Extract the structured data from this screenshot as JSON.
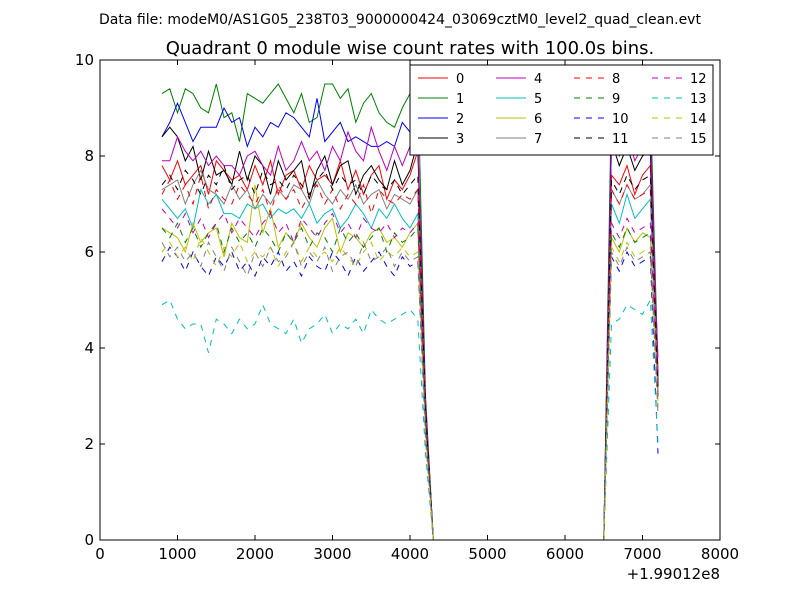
{
  "suptitle": "Data file: modeM0/AS1G05_238T03_9000000424_03069cztM0_level2_quad_clean.evt",
  "chart_data": {
    "type": "line",
    "title": "Quadrant 0 module wise count rates with 100.0s bins.",
    "xlabel": "",
    "ylabel": "",
    "xlim": [
      0,
      8000
    ],
    "ylim": [
      0,
      10
    ],
    "x_offset_label": "+1.99012e8",
    "x_ticks": [
      0,
      1000,
      2000,
      3000,
      4000,
      5000,
      6000,
      7000,
      8000
    ],
    "x_tick_labels": [
      "0",
      "1000",
      "2000",
      "3000",
      "4000",
      "5000",
      "6000",
      "7000",
      "8000"
    ],
    "y_ticks": [
      0,
      2,
      4,
      6,
      8,
      10
    ],
    "y_tick_labels": [
      "0",
      "2",
      "4",
      "6",
      "8",
      "10"
    ],
    "grid": false,
    "legend_position": "top-right",
    "legend_columns": 4,
    "x_segments": [
      [
        800,
        900,
        1000,
        1100,
        1200,
        1300,
        1400,
        1500,
        1600,
        1700,
        1800,
        1900,
        2000,
        2100,
        2200,
        2300,
        2400,
        2500,
        2600,
        2700,
        2800,
        2900,
        3000,
        3100,
        3200,
        3300,
        3400,
        3500,
        3600,
        3700,
        3800,
        3900,
        4000,
        4100,
        4200,
        4300,
        4400,
        4500,
        4600,
        4700,
        4800,
        4900,
        5000,
        5100,
        5200,
        5300,
        5400,
        5500,
        5600,
        5700,
        5800,
        5900,
        6000,
        6100,
        6200,
        6300,
        6400,
        6500,
        6600,
        6700,
        6800,
        6900,
        7000,
        7100,
        7200
      ]
    ],
    "series": [
      {
        "name": "0",
        "color": "#ff0000",
        "dash": "solid",
        "values": [
          7.8,
          7.5,
          7.9,
          7.4,
          7.6,
          7.8,
          7.2,
          7.9,
          7.7,
          7.5,
          7.6,
          7.3,
          7.8,
          7.4,
          7.9,
          7.2,
          7.6,
          7.7,
          7.3,
          7.8,
          7.5,
          7.6,
          7.4,
          7.9,
          7.3,
          7.7,
          7.2,
          7.6,
          7.8,
          7.1,
          7.5,
          7.3,
          7.6,
          8.1,
          2.8,
          0,
          0,
          0,
          0,
          0,
          0,
          0,
          0,
          0,
          0,
          0,
          0,
          0,
          0,
          0,
          0,
          0,
          0,
          0,
          0,
          0,
          0,
          0,
          7.6,
          7.4,
          7.8,
          7.2,
          7.6,
          7.8,
          3.8
        ]
      },
      {
        "name": "1",
        "color": "#008000",
        "dash": "solid",
        "values": [
          9.3,
          9.4,
          8.9,
          9.4,
          9.3,
          9.0,
          8.9,
          9.5,
          8.8,
          8.9,
          8.3,
          9.3,
          9.2,
          9.1,
          9.3,
          9.5,
          9.2,
          8.9,
          9.3,
          8.7,
          8.8,
          9.5,
          9.5,
          9.2,
          9.4,
          8.7,
          9.1,
          9.3,
          8.9,
          8.7,
          8.6,
          9.0,
          9.3,
          9.6,
          3.0,
          0,
          0,
          0,
          0,
          0,
          0,
          0,
          0,
          0,
          0,
          0,
          0,
          0,
          0,
          0,
          0,
          0,
          0,
          0,
          0,
          0,
          0,
          0,
          9.3,
          8.6,
          9.5,
          9.0,
          9.3,
          9.2,
          3.5
        ]
      },
      {
        "name": "2",
        "color": "#0000ff",
        "dash": "solid",
        "values": [
          8.4,
          8.7,
          9.1,
          8.7,
          8.3,
          8.6,
          8.6,
          8.6,
          9.0,
          8.7,
          8.8,
          8.2,
          8.6,
          8.4,
          8.7,
          8.6,
          8.9,
          8.8,
          8.6,
          8.4,
          9.2,
          8.3,
          8.5,
          8.7,
          8.3,
          8.4,
          8.3,
          8.2,
          8.2,
          8.3,
          8.2,
          8.7,
          8.5,
          8.3,
          2.9,
          0,
          0,
          0,
          0,
          0,
          0,
          0,
          0,
          0,
          0,
          0,
          0,
          0,
          0,
          0,
          0,
          0,
          0,
          0,
          0,
          0,
          0,
          0,
          8.6,
          8.4,
          8.6,
          8.3,
          8.4,
          8.6,
          3.3
        ]
      },
      {
        "name": "3",
        "color": "#000000",
        "dash": "solid",
        "values": [
          8.4,
          8.6,
          8.4,
          7.9,
          8.2,
          7.5,
          8.1,
          7.6,
          7.7,
          7.4,
          8.1,
          7.5,
          8.0,
          7.8,
          7.2,
          7.9,
          7.5,
          7.7,
          7.9,
          7.1,
          7.7,
          8.0,
          7.4,
          7.8,
          7.9,
          7.2,
          7.6,
          7.8,
          7.5,
          7.3,
          7.9,
          7.4,
          7.7,
          8.3,
          2.7,
          0,
          0,
          0,
          0,
          0,
          0,
          0,
          0,
          0,
          0,
          0,
          0,
          0,
          0,
          0,
          0,
          0,
          0,
          0,
          0,
          0,
          0,
          0,
          8.3,
          7.8,
          8.2,
          7.7,
          8.0,
          8.1,
          3.2
        ]
      },
      {
        "name": "4",
        "color": "#bf00bf",
        "dash": "solid",
        "values": [
          7.9,
          7.9,
          8.4,
          8.1,
          7.9,
          8.1,
          7.8,
          8.0,
          7.8,
          7.8,
          7.6,
          8.0,
          8.1,
          7.8,
          7.6,
          8.2,
          7.7,
          7.9,
          8.3,
          7.9,
          8.1,
          7.7,
          8.2,
          7.9,
          8.5,
          8.1,
          7.9,
          8.6,
          8.1,
          7.7,
          8.2,
          7.8,
          8.2,
          8.4,
          2.8,
          0,
          0,
          0,
          0,
          0,
          0,
          0,
          0,
          0,
          0,
          0,
          0,
          0,
          0,
          0,
          0,
          0,
          0,
          0,
          0,
          0,
          0,
          0,
          8.3,
          8.0,
          8.5,
          7.9,
          8.2,
          8.5,
          3.4
        ]
      },
      {
        "name": "5",
        "color": "#00bfbf",
        "dash": "solid",
        "values": [
          7.1,
          6.9,
          6.7,
          6.9,
          6.5,
          7.3,
          7.0,
          7.2,
          6.8,
          6.8,
          6.7,
          7.0,
          6.9,
          7.0,
          6.7,
          6.9,
          6.8,
          6.9,
          6.7,
          7.0,
          6.6,
          6.8,
          6.9,
          6.5,
          6.7,
          7.0,
          6.8,
          6.5,
          6.9,
          6.7,
          7.0,
          6.7,
          6.5,
          6.8,
          2.5,
          0,
          0,
          0,
          0,
          0,
          0,
          0,
          0,
          0,
          0,
          0,
          0,
          0,
          0,
          0,
          0,
          0,
          0,
          0,
          0,
          0,
          0,
          0,
          7.0,
          6.6,
          7.2,
          6.7,
          6.9,
          7.1,
          3.0
        ]
      },
      {
        "name": "6",
        "color": "#bfbf00",
        "dash": "solid",
        "values": [
          6.5,
          6.4,
          6.3,
          6.0,
          6.6,
          6.2,
          6.4,
          6.5,
          5.9,
          6.6,
          6.3,
          6.2,
          7.4,
          6.4,
          6.9,
          6.1,
          6.4,
          6.2,
          6.6,
          6.3,
          6.1,
          6.5,
          6.7,
          6.0,
          6.4,
          6.3,
          6.1,
          6.4,
          6.5,
          6.2,
          6.3,
          6.1,
          6.4,
          6.6,
          2.4,
          0,
          0,
          0,
          0,
          0,
          0,
          0,
          0,
          0,
          0,
          0,
          0,
          0,
          0,
          0,
          0,
          0,
          0,
          0,
          0,
          0,
          0,
          0,
          6.3,
          6.0,
          6.5,
          6.2,
          6.4,
          6.3,
          2.9
        ]
      },
      {
        "name": "7",
        "color": "#808080",
        "dash": "solid",
        "values": [
          7.3,
          7.4,
          7.5,
          7.0,
          7.4,
          7.7,
          7.3,
          7.2,
          7.0,
          7.4,
          7.1,
          7.3,
          6.9,
          7.2,
          7.0,
          7.3,
          7.1,
          7.4,
          7.3,
          7.0,
          7.5,
          7.2,
          7.0,
          7.3,
          7.1,
          7.4,
          7.0,
          7.2,
          7.3,
          6.9,
          7.2,
          7.1,
          7.0,
          7.3,
          2.6,
          0,
          0,
          0,
          0,
          0,
          0,
          0,
          0,
          0,
          0,
          0,
          0,
          0,
          0,
          0,
          0,
          0,
          0,
          0,
          0,
          0,
          0,
          0,
          7.3,
          7.0,
          7.4,
          7.1,
          7.2,
          7.4,
          3.1
        ]
      },
      {
        "name": "8",
        "color": "#ff0000",
        "dash": "dashed",
        "values": [
          7.2,
          7.5,
          7.1,
          7.4,
          7.0,
          7.6,
          6.9,
          7.3,
          7.1,
          7.0,
          7.4,
          7.2,
          7.0,
          7.3,
          6.8,
          7.4,
          7.1,
          7.3,
          6.9,
          7.2,
          7.4,
          7.0,
          7.3,
          6.9,
          7.2,
          7.0,
          7.4,
          6.8,
          7.3,
          7.1,
          7.0,
          7.2,
          7.1,
          7.3,
          2.6,
          0,
          0,
          0,
          0,
          0,
          0,
          0,
          0,
          0,
          0,
          0,
          0,
          0,
          0,
          0,
          0,
          0,
          0,
          0,
          0,
          0,
          0,
          0,
          7.3,
          7.0,
          7.4,
          7.1,
          7.2,
          7.3,
          3.1
        ]
      },
      {
        "name": "9",
        "color": "#008000",
        "dash": "dashed",
        "values": [
          6.5,
          6.3,
          6.6,
          6.2,
          6.5,
          6.1,
          6.4,
          6.6,
          6.0,
          6.5,
          6.2,
          6.4,
          6.1,
          6.5,
          6.3,
          6.0,
          6.4,
          6.2,
          6.5,
          6.1,
          6.4,
          6.3,
          6.0,
          6.5,
          6.2,
          6.4,
          6.1,
          6.3,
          6.5,
          6.0,
          6.4,
          6.2,
          6.3,
          6.5,
          2.4,
          0,
          0,
          0,
          0,
          0,
          0,
          0,
          0,
          0,
          0,
          0,
          0,
          0,
          0,
          0,
          0,
          0,
          0,
          0,
          0,
          0,
          0,
          0,
          6.4,
          6.1,
          6.5,
          6.2,
          6.3,
          6.4,
          2.8
        ]
      },
      {
        "name": "10",
        "color": "#0000ff",
        "dash": "dashed",
        "values": [
          5.8,
          6.1,
          5.9,
          5.6,
          6.0,
          5.7,
          5.5,
          5.9,
          5.7,
          6.0,
          5.6,
          5.8,
          5.5,
          5.9,
          5.7,
          6.0,
          5.6,
          5.8,
          5.5,
          5.9,
          5.7,
          5.6,
          6.0,
          5.8,
          5.5,
          5.9,
          5.6,
          5.8,
          6.0,
          5.7,
          5.5,
          5.9,
          5.7,
          5.8,
          2.2,
          0,
          0,
          0,
          0,
          0,
          0,
          0,
          0,
          0,
          0,
          0,
          0,
          0,
          0,
          0,
          0,
          0,
          0,
          0,
          0,
          0,
          0,
          0,
          5.9,
          5.6,
          6.0,
          5.7,
          5.8,
          5.9,
          1.8
        ]
      },
      {
        "name": "11",
        "color": "#000000",
        "dash": "dashed",
        "values": [
          7.4,
          7.6,
          7.3,
          7.7,
          7.5,
          7.2,
          7.6,
          7.4,
          7.8,
          7.3,
          7.5,
          7.6,
          7.2,
          7.7,
          7.4,
          7.5,
          7.3,
          7.6,
          7.4,
          7.2,
          7.5,
          7.7,
          7.3,
          7.6,
          7.4,
          7.5,
          7.2,
          7.6,
          7.4,
          7.3,
          7.5,
          7.2,
          7.4,
          7.6,
          2.7,
          0,
          0,
          0,
          0,
          0,
          0,
          0,
          0,
          0,
          0,
          0,
          0,
          0,
          0,
          0,
          0,
          0,
          0,
          0,
          0,
          0,
          0,
          0,
          7.5,
          7.2,
          7.6,
          7.3,
          7.5,
          7.6,
          3.2
        ]
      },
      {
        "name": "12",
        "color": "#bf00bf",
        "dash": "dashed",
        "values": [
          6.9,
          6.7,
          6.5,
          6.8,
          6.4,
          6.7,
          6.3,
          6.6,
          6.8,
          6.4,
          6.7,
          6.5,
          6.3,
          6.6,
          6.8,
          6.4,
          6.6,
          6.2,
          6.7,
          6.5,
          6.3,
          6.6,
          6.8,
          6.4,
          6.6,
          6.3,
          6.7,
          6.5,
          6.4,
          6.6,
          6.3,
          6.5,
          6.4,
          6.6,
          2.4,
          0,
          0,
          0,
          0,
          0,
          0,
          0,
          0,
          0,
          0,
          0,
          0,
          0,
          0,
          0,
          0,
          0,
          0,
          0,
          0,
          0,
          0,
          0,
          6.6,
          6.3,
          6.7,
          6.4,
          6.5,
          6.6,
          3.0
        ]
      },
      {
        "name": "13",
        "color": "#00bfbf",
        "dash": "dashed",
        "values": [
          4.9,
          5.0,
          4.6,
          4.4,
          4.5,
          4.5,
          3.9,
          4.6,
          4.5,
          4.3,
          4.6,
          4.4,
          4.5,
          4.9,
          4.5,
          4.4,
          4.3,
          4.6,
          4.1,
          4.4,
          4.5,
          4.7,
          4.3,
          4.5,
          4.4,
          4.6,
          4.3,
          4.8,
          4.6,
          4.5,
          4.6,
          4.7,
          4.8,
          4.6,
          1.8,
          0,
          0,
          0,
          0,
          0,
          0,
          0,
          0,
          0,
          0,
          0,
          0,
          0,
          0,
          0,
          0,
          0,
          0,
          0,
          0,
          0,
          0,
          0,
          4.5,
          4.6,
          4.9,
          4.8,
          4.7,
          5.0,
          2.0
        ]
      },
      {
        "name": "14",
        "color": "#bfbf00",
        "dash": "dashed",
        "values": [
          6.0,
          6.2,
          5.9,
          6.1,
          5.8,
          6.3,
          6.0,
          5.7,
          6.1,
          5.9,
          6.2,
          5.8,
          6.0,
          5.9,
          6.1,
          5.7,
          6.0,
          6.2,
          5.8,
          6.1,
          5.9,
          6.0,
          5.8,
          6.1,
          5.9,
          5.7,
          6.0,
          6.2,
          5.8,
          6.0,
          5.9,
          6.1,
          5.9,
          6.0,
          2.2,
          0,
          0,
          0,
          0,
          0,
          0,
          0,
          0,
          0,
          0,
          0,
          0,
          0,
          0,
          0,
          0,
          0,
          0,
          0,
          0,
          0,
          0,
          0,
          6.1,
          5.8,
          6.2,
          5.9,
          6.0,
          6.1,
          2.7
        ]
      },
      {
        "name": "15",
        "color": "#808080",
        "dash": "dashed",
        "values": [
          6.2,
          5.9,
          6.1,
          5.8,
          6.0,
          5.7,
          6.2,
          5.9,
          5.6,
          6.1,
          5.8,
          5.5,
          6.0,
          5.7,
          6.1,
          5.8,
          5.9,
          6.2,
          5.7,
          6.0,
          5.8,
          6.1,
          5.6,
          5.9,
          6.0,
          5.7,
          6.2,
          5.8,
          5.9,
          6.1,
          5.7,
          6.0,
          5.8,
          5.9,
          2.1,
          0,
          0,
          0,
          0,
          0,
          0,
          0,
          0,
          0,
          0,
          0,
          0,
          0,
          0,
          0,
          0,
          0,
          0,
          0,
          0,
          0,
          0,
          0,
          6.0,
          5.7,
          6.1,
          5.8,
          5.9,
          6.0,
          2.6
        ]
      }
    ]
  }
}
